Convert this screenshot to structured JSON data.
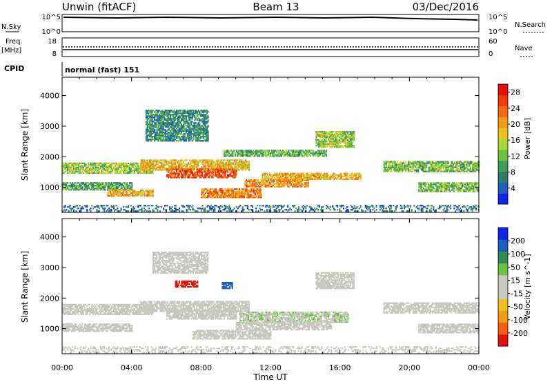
{
  "header": {
    "station": "Unwin (fitACF)",
    "beam": "Beam 13",
    "date": "03/Dec/2016"
  },
  "status_panel": {
    "nsky_label": "N.Sky",
    "nsky_ticks": [
      "10^5",
      "10^0"
    ],
    "nsearch_label": "N.Search",
    "nsearch_ticks": [
      "10^5",
      "10^0"
    ],
    "freq_label": "Freq.",
    "freq_unit": "[MHz]",
    "freq_ticks": [
      "18",
      "8"
    ],
    "nave_label": "Nave",
    "nave_ticks": [
      "60",
      "0"
    ],
    "cpid_label": "CPID",
    "cpid_value": "normal (fast) 151"
  },
  "chart_data": [
    {
      "type": "heatmap",
      "panel": "power",
      "title": "",
      "xlabel": "Time UT",
      "ylabel": "Slant Range [km]",
      "xlim": [
        0,
        24
      ],
      "ylim": [
        180,
        4600
      ],
      "x_ticks": [
        "00:00",
        "04:00",
        "08:00",
        "12:00",
        "16:00",
        "20:00",
        "00:00"
      ],
      "y_ticks": [
        "1000",
        "2000",
        "3000",
        "4000"
      ],
      "colorbar": {
        "label": "Power [dB]",
        "ticks": [
          "4",
          "8",
          "12",
          "16",
          "20",
          "24",
          "28"
        ],
        "range": [
          0,
          30
        ],
        "colors": [
          "#0b26e6",
          "#1d5fbe",
          "#2e7d6b",
          "#3e9b5c",
          "#6cc240",
          "#a8d832",
          "#f0c020",
          "#f59a17",
          "#f46a12",
          "#ef3a0e",
          "#e3130b"
        ]
      },
      "regions": [
        {
          "t0": 0.0,
          "t1": 5.2,
          "r0": 1450,
          "r1": 1800,
          "value": 14
        },
        {
          "t0": 0.0,
          "t1": 4.0,
          "r0": 900,
          "r1": 1150,
          "value": 10
        },
        {
          "t0": 2.6,
          "t1": 5.2,
          "r0": 700,
          "r1": 900,
          "value": 20
        },
        {
          "t0": 4.5,
          "t1": 10.8,
          "r0": 1550,
          "r1": 1900,
          "value": 18
        },
        {
          "t0": 6.0,
          "t1": 10.0,
          "r0": 1300,
          "r1": 1600,
          "value": 25
        },
        {
          "t0": 8.0,
          "t1": 11.5,
          "r0": 650,
          "r1": 950,
          "value": 22
        },
        {
          "t0": 10.5,
          "t1": 14.2,
          "r0": 1000,
          "r1": 1250,
          "value": 21
        },
        {
          "t0": 11.5,
          "t1": 17.2,
          "r0": 1250,
          "r1": 1450,
          "value": 19
        },
        {
          "t0": 14.6,
          "t1": 16.8,
          "r0": 2300,
          "r1": 2800,
          "value": 14
        },
        {
          "t0": 9.3,
          "t1": 15.2,
          "r0": 2000,
          "r1": 2200,
          "value": 11
        },
        {
          "t0": 18.5,
          "t1": 24.0,
          "r0": 1500,
          "r1": 1850,
          "value": 12
        },
        {
          "t0": 20.5,
          "t1": 24.0,
          "r0": 850,
          "r1": 1150,
          "value": 12
        },
        {
          "t0": 4.8,
          "t1": 8.4,
          "r0": 2500,
          "r1": 3500,
          "value": 8
        },
        {
          "t0": 0.0,
          "t1": 24.0,
          "r0": 200,
          "r1": 400,
          "value": 6
        }
      ]
    },
    {
      "type": "heatmap",
      "panel": "velocity",
      "title": "",
      "xlabel": "Time UT",
      "ylabel": "Slant Range [km]",
      "xlim": [
        0,
        24
      ],
      "ylim": [
        180,
        4600
      ],
      "x_ticks": [
        "00:00",
        "04:00",
        "08:00",
        "12:00",
        "16:00",
        "20:00",
        "00:00"
      ],
      "y_ticks": [
        "1000",
        "2000",
        "3000",
        "4000"
      ],
      "colorbar": {
        "label": "Velocity [m s^-1]",
        "ticks": [
          "200",
          "100",
          "50",
          "15",
          "-15",
          "-50",
          "-100",
          "-200"
        ],
        "range": [
          -250,
          250
        ],
        "colors": [
          "#e3130b",
          "#f45d10",
          "#f59a17",
          "#f0c020",
          "#c8c8c0",
          "#c8c8c0",
          "#6cc240",
          "#2e8c4e",
          "#1d5fbe",
          "#0b26e6"
        ]
      },
      "regions": [
        {
          "t0": 0.0,
          "t1": 5.2,
          "r0": 1450,
          "r1": 1800,
          "value": 0
        },
        {
          "t0": 0.0,
          "t1": 4.0,
          "r0": 900,
          "r1": 1150,
          "value": 0
        },
        {
          "t0": 4.5,
          "t1": 10.8,
          "r0": 1550,
          "r1": 1900,
          "value": 0
        },
        {
          "t0": 6.0,
          "t1": 10.0,
          "r0": 1300,
          "r1": 1600,
          "value": 5
        },
        {
          "t0": 10.2,
          "t1": 16.5,
          "r0": 1200,
          "r1": 1550,
          "value": 40
        },
        {
          "t0": 10.0,
          "t1": 15.5,
          "r0": 950,
          "r1": 1200,
          "value": -30
        },
        {
          "t0": 7.5,
          "t1": 12.0,
          "r0": 650,
          "r1": 950,
          "value": 25
        },
        {
          "t0": 14.6,
          "t1": 16.8,
          "r0": 2300,
          "r1": 2800,
          "value": 0
        },
        {
          "t0": 18.5,
          "t1": 24.0,
          "r0": 1500,
          "r1": 1850,
          "value": 0
        },
        {
          "t0": 20.5,
          "t1": 24.0,
          "r0": 850,
          "r1": 1150,
          "value": 0
        },
        {
          "t0": 6.5,
          "t1": 7.8,
          "r0": 2350,
          "r1": 2550,
          "value": -220
        },
        {
          "t0": 9.2,
          "t1": 9.8,
          "r0": 2300,
          "r1": 2500,
          "value": 180
        },
        {
          "t0": 5.2,
          "t1": 8.4,
          "r0": 2800,
          "r1": 3500,
          "value": 10
        },
        {
          "t0": 0.0,
          "t1": 24.0,
          "r0": 200,
          "r1": 400,
          "value": 30
        }
      ]
    }
  ]
}
